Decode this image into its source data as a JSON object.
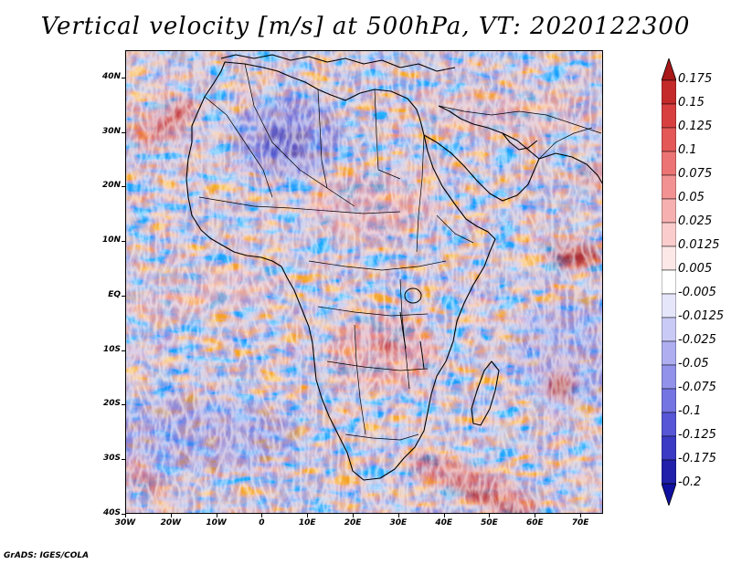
{
  "title": "Vertical velocity [m/s] at 500hPa, VT: 2020122300",
  "footer": "GrADS: IGES/COLA",
  "map": {
    "variable": "Vertical velocity",
    "units": "m/s",
    "level": "500hPa",
    "valid_time": "2020122300",
    "lon_range": [
      -30,
      75
    ],
    "lat_range": [
      -40,
      45
    ],
    "lat_labels": [
      "40N",
      "30N",
      "20N",
      "10N",
      "EQ",
      "10S",
      "20S",
      "30S",
      "40S"
    ],
    "lon_labels": [
      "30W",
      "20W",
      "10W",
      "0",
      "10E",
      "20E",
      "30E",
      "40E",
      "50E",
      "60E",
      "70E"
    ]
  },
  "colorbar": {
    "labels": [
      "0.175",
      "0.15",
      "0.125",
      "0.1",
      "0.075",
      "0.05",
      "0.025",
      "0.0125",
      "0.005",
      "-0.005",
      "-0.0125",
      "-0.025",
      "-0.05",
      "-0.075",
      "-0.1",
      "-0.125",
      "-0.175",
      "-0.2"
    ],
    "colors": [
      "#a81818",
      "#c42a2a",
      "#d84040",
      "#e45858",
      "#ec7474",
      "#f29292",
      "#f6b0b0",
      "#facccc",
      "#fde8e8",
      "#ffffff",
      "#e6e6fb",
      "#cacaf6",
      "#aeaef1",
      "#9292ea",
      "#7474e2",
      "#5656d6",
      "#3a3ac4",
      "#2020aa",
      "#1010a0"
    ]
  },
  "colors": {
    "red_core": "#b22222",
    "blue_core": "#3232c8"
  }
}
